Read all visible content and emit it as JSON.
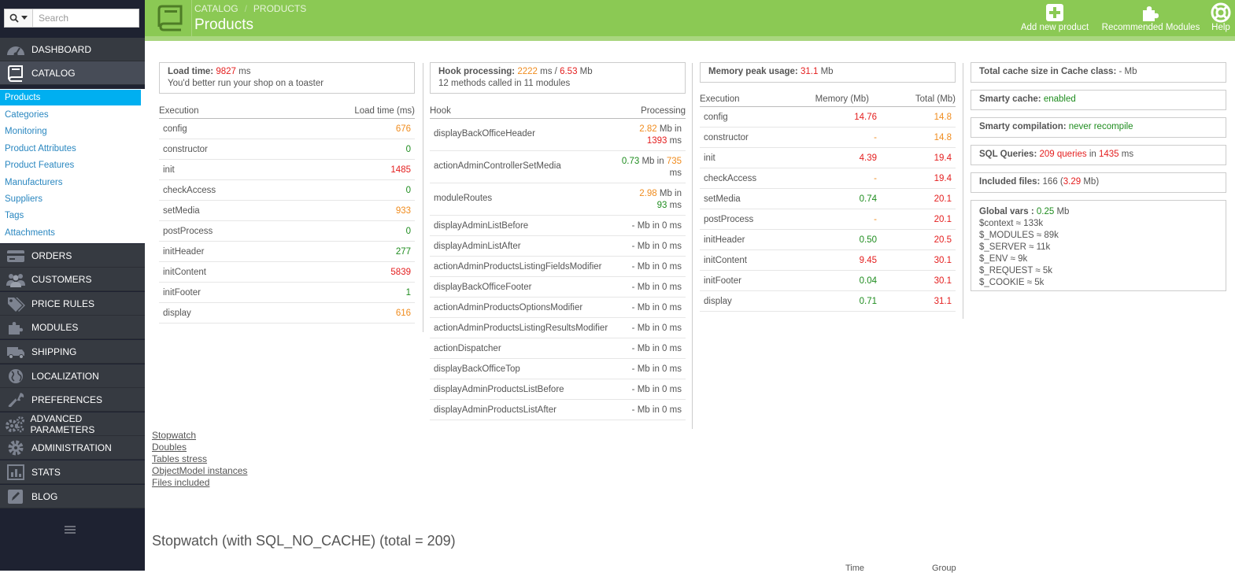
{
  "search": {
    "placeholder": "Search"
  },
  "sidebar": {
    "items": [
      {
        "label": "DASHBOARD",
        "icon": "dashboard-icon"
      },
      {
        "label": "CATALOG",
        "icon": "book-icon"
      },
      {
        "label": "ORDERS",
        "icon": "credit-card-icon"
      },
      {
        "label": "CUSTOMERS",
        "icon": "users-icon"
      },
      {
        "label": "PRICE RULES",
        "icon": "tags-icon"
      },
      {
        "label": "MODULES",
        "icon": "puzzle-icon"
      },
      {
        "label": "SHIPPING",
        "icon": "truck-icon"
      },
      {
        "label": "LOCALIZATION",
        "icon": "globe-icon"
      },
      {
        "label": "PREFERENCES",
        "icon": "wrench-icon"
      },
      {
        "label": "ADVANCED PARAMETERS",
        "icon": "cogs-icon"
      },
      {
        "label": "ADMINISTRATION",
        "icon": "gear-icon"
      },
      {
        "label": "STATS",
        "icon": "bar-chart-icon"
      },
      {
        "label": "BLOG",
        "icon": "pencil-icon"
      }
    ],
    "catalog_sub": [
      "Products",
      "Categories",
      "Monitoring",
      "Product Attributes",
      "Product Features",
      "Manufacturers",
      "Suppliers",
      "Tags",
      "Attachments"
    ]
  },
  "header": {
    "breadcrumb": [
      "CATALOG",
      "PRODUCTS"
    ],
    "title": "Products",
    "add_new_product": "Add new product",
    "recommended_modules": "Recommended Modules",
    "help": "Help"
  },
  "profiling": {
    "load_time": {
      "label": "Load time:",
      "value": "9827",
      "unit": "ms",
      "note": "You'd better run your shop on a toaster"
    },
    "hook_processing": {
      "label": "Hook processing:",
      "ms": "2222",
      "ms_unit": "ms /",
      "mb": "6.53",
      "mb_unit": "Mb",
      "note": "12 methods called in 11 modules"
    },
    "memory_peak": {
      "label": "Memory peak usage:",
      "value": "31.1",
      "unit": "Mb"
    },
    "total_cache": {
      "label": "Total cache size in Cache class:",
      "value": "- Mb"
    },
    "smarty_cache": {
      "label": "Smarty cache:",
      "value": "enabled"
    },
    "smarty_compilation": {
      "label": "Smarty compilation:",
      "value": "never recompile"
    },
    "sql_queries": {
      "label": "SQL Queries:",
      "count": "209 queries",
      "in": "in",
      "ms": "1435",
      "unit": "ms"
    },
    "included_files": {
      "label": "Included files:",
      "count": "166",
      "mb": "3.29",
      "mb_text": "Mb"
    },
    "global_vars": {
      "label": "Global vars :",
      "value": "0.25",
      "unit": "Mb",
      "lines": [
        "$context ≈ 133k",
        "$_MODULES ≈ 89k",
        "$_SERVER ≈ 11k",
        "$_ENV ≈ 9k",
        "$_REQUEST ≈ 5k",
        "$_COOKIE ≈ 5k"
      ]
    }
  },
  "execution_table": {
    "headers": [
      "Execution",
      "Load time (ms)"
    ],
    "rows": [
      {
        "name": "config",
        "value": "676",
        "color": "#f08c1e"
      },
      {
        "name": "constructor",
        "value": "0",
        "color": "#1e8c1e"
      },
      {
        "name": "init",
        "value": "1485",
        "color": "#e41e1e"
      },
      {
        "name": "checkAccess",
        "value": "0",
        "color": "#1e8c1e"
      },
      {
        "name": "setMedia",
        "value": "933",
        "color": "#f08c1e"
      },
      {
        "name": "postProcess",
        "value": "0",
        "color": "#1e8c1e"
      },
      {
        "name": "initHeader",
        "value": "277",
        "color": "#1e8c1e"
      },
      {
        "name": "initContent",
        "value": "5839",
        "color": "#e41e1e"
      },
      {
        "name": "initFooter",
        "value": "1",
        "color": "#1e8c1e"
      },
      {
        "name": "display",
        "value": "616",
        "color": "#f08c1e"
      }
    ]
  },
  "hook_table": {
    "headers": [
      "Hook",
      "Processing"
    ],
    "rows": [
      {
        "name": "displayBackOfficeHeader",
        "mb": "2.82",
        "mb_color": "#f08c1e",
        "ms": "1393",
        "ms_color": "#e41e1e",
        "wrap": true
      },
      {
        "name": "actionAdminControllerSetMedia",
        "mb": "0.73",
        "mb_color": "#1e8c1e",
        "ms": "735",
        "ms_color": "#f08c1e",
        "wrap": true
      },
      {
        "name": "moduleRoutes",
        "mb": "2.98",
        "mb_color": "#f08c1e",
        "ms": "93",
        "ms_color": "#1e8c1e",
        "wrap": true
      },
      {
        "name": "displayAdminListBefore",
        "mb": "-",
        "ms": "0"
      },
      {
        "name": "displayAdminListAfter",
        "mb": "-",
        "ms": "0"
      },
      {
        "name": "actionAdminProductsListingFieldsModifier",
        "mb": "-",
        "ms": "0"
      },
      {
        "name": "displayBackOfficeFooter",
        "mb": "-",
        "ms": "0"
      },
      {
        "name": "actionAdminProductsOptionsModifier",
        "mb": "-",
        "ms": "0"
      },
      {
        "name": "actionAdminProductsListingResultsModifier",
        "mb": "-",
        "ms": "0"
      },
      {
        "name": "actionDispatcher",
        "mb": "-",
        "ms": "0"
      },
      {
        "name": "displayBackOfficeTop",
        "mb": "-",
        "ms": "0"
      },
      {
        "name": "displayAdminProductsListBefore",
        "mb": "-",
        "ms": "0"
      },
      {
        "name": "displayAdminProductsListAfter",
        "mb": "-",
        "ms": "0"
      }
    ],
    "in_word": "in",
    "mb_unit": "Mb",
    "ms_unit": "ms"
  },
  "memory_table": {
    "headers": [
      "Execution",
      "Memory (Mb)",
      "Total (Mb)"
    ],
    "rows": [
      {
        "name": "config",
        "mem": "14.76",
        "mem_color": "#e41e1e",
        "total": "14.8",
        "total_color": "#f08c1e"
      },
      {
        "name": "constructor",
        "mem": "-",
        "mem_color": "#f08c1e",
        "total": "14.8",
        "total_color": "#f08c1e"
      },
      {
        "name": "init",
        "mem": "4.39",
        "mem_color": "#e41e1e",
        "total": "19.4",
        "total_color": "#e41e1e"
      },
      {
        "name": "checkAccess",
        "mem": "-",
        "mem_color": "#f08c1e",
        "total": "19.4",
        "total_color": "#e41e1e"
      },
      {
        "name": "setMedia",
        "mem": "0.74",
        "mem_color": "#1e8c1e",
        "total": "20.1",
        "total_color": "#e41e1e"
      },
      {
        "name": "postProcess",
        "mem": "-",
        "mem_color": "#f08c1e",
        "total": "20.1",
        "total_color": "#e41e1e"
      },
      {
        "name": "initHeader",
        "mem": "0.50",
        "mem_color": "#1e8c1e",
        "total": "20.5",
        "total_color": "#e41e1e"
      },
      {
        "name": "initContent",
        "mem": "9.45",
        "mem_color": "#e41e1e",
        "total": "30.1",
        "total_color": "#e41e1e"
      },
      {
        "name": "initFooter",
        "mem": "0.04",
        "mem_color": "#1e8c1e",
        "total": "30.1",
        "total_color": "#e41e1e"
      },
      {
        "name": "display",
        "mem": "0.71",
        "mem_color": "#1e8c1e",
        "total": "31.1",
        "total_color": "#e41e1e"
      }
    ]
  },
  "links": [
    "Stopwatch",
    "Doubles",
    "Tables stress",
    "ObjectModel instances",
    "Files included"
  ],
  "stopwatch": {
    "title": "Stopwatch (with SQL_NO_CACHE) (total = 209)",
    "col_time": "Time",
    "col_group": "Group"
  }
}
